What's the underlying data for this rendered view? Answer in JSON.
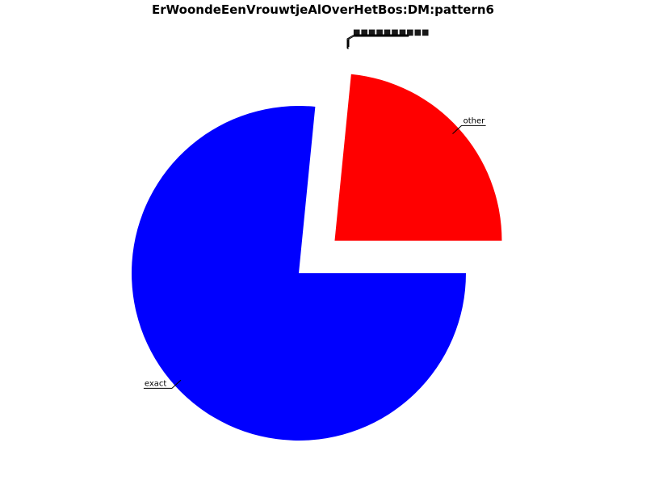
{
  "chart_data": {
    "type": "pie",
    "title": "ErWoondeEenVrouwtjeAlOverHetBos:DM:pattern6",
    "slices": [
      {
        "label": "other",
        "value": 0.2343,
        "color": "#ff0000",
        "exploded": true
      },
      {
        "label": "exact",
        "value": 0.7657,
        "color": "#0000ff",
        "exploded": false
      }
    ],
    "overlapping_small_labels": "illegible"
  }
}
